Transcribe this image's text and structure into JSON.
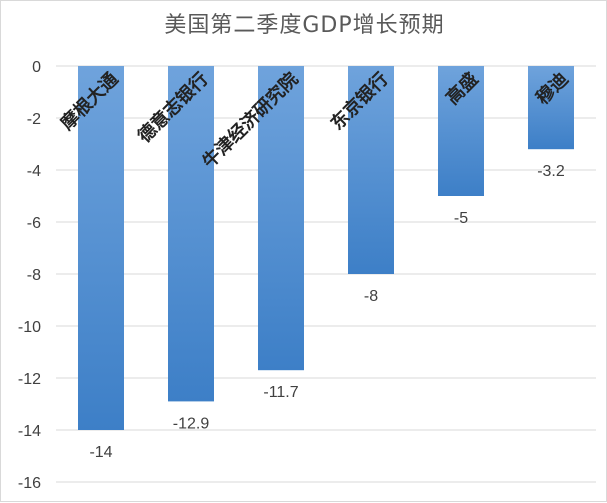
{
  "chart_data": {
    "type": "bar",
    "title": "美国第二季度GDP增长预期",
    "categories": [
      "摩根大通",
      "德意志银行",
      "牛津经济研究院",
      "东京银行",
      "高盛",
      "穆迪"
    ],
    "values": [
      -14,
      -12.9,
      -11.7,
      -8,
      -5,
      -3.2
    ],
    "value_labels": [
      "-14",
      "-12.9",
      "-11.7",
      "-8",
      "-5",
      "-3.2"
    ],
    "xlabel": "",
    "ylabel": "",
    "ylim": [
      -16,
      0
    ],
    "yticks": [
      "0",
      "-2",
      "-4",
      "-6",
      "-8",
      "-10",
      "-12",
      "-14",
      "-16"
    ],
    "grid": true,
    "legend": "none",
    "colors": {
      "bar_top": "#6fa3dc",
      "bar_bottom": "#3d7fc7",
      "grid": "#d9d9d9",
      "text": "#404040"
    }
  }
}
